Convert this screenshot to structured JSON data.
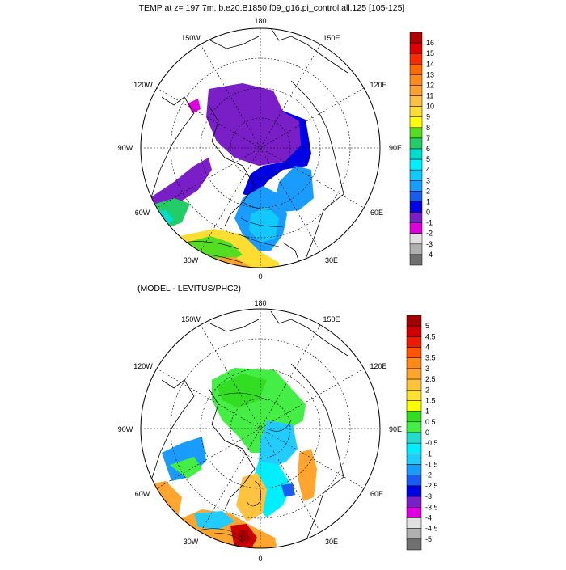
{
  "top_panel": {
    "title": "TEMP at z= 197.7m, b.e20.B1850.f09_g16.pi_control.all.125 [105-125]",
    "lon_labels": {
      "top": "180",
      "tl": "150W",
      "tr": "150E",
      "ul": "120W",
      "ur": "120E",
      "left": "90W",
      "right": "90E",
      "ll": "60W",
      "lr": "60E",
      "bl": "30W",
      "br": "30E",
      "bottom": "0"
    },
    "colorbar": {
      "labels": [
        "16",
        "15",
        "14",
        "13",
        "12",
        "11",
        "10",
        "9",
        "8",
        "7",
        "6",
        "5",
        "4",
        "3",
        "2",
        "1",
        "0",
        "-1",
        "-2",
        "-3",
        "-4"
      ],
      "colors": [
        "#b00000",
        "#dd0000",
        "#ff2a00",
        "#ff6a00",
        "#ff8a1a",
        "#ffa030",
        "#ffbf40",
        "#ffdd33",
        "#ffff00",
        "#55dd22",
        "#22cc66",
        "#00ddcc",
        "#00eeff",
        "#11c8ff",
        "#1a9cff",
        "#1a5cf0",
        "#0000e6",
        "#7a1ec8",
        "#dd00dd",
        "#e0e0e0",
        "#b0b0b0",
        "#707070"
      ]
    }
  },
  "bottom_panel": {
    "title": "(MODEL - LEVITUS/PHC2)",
    "lon_labels": {
      "top": "180",
      "tl": "150W",
      "tr": "150E",
      "ul": "120W",
      "ur": "120E",
      "left": "90W",
      "right": "90E",
      "ll": "60W",
      "lr": "60E",
      "bl": "30W",
      "br": "30E",
      "bottom": "0"
    },
    "colorbar": {
      "labels": [
        "5",
        "4.5",
        "4",
        "3.5",
        "3",
        "2.5",
        "2",
        "1.5",
        "1",
        "0.5",
        "0",
        "-0.5",
        "-1",
        "-1.5",
        "-2",
        "-2.5",
        "-3",
        "-3.5",
        "-4",
        "-4.5",
        "-5"
      ],
      "colors": [
        "#a00000",
        "#cc0000",
        "#ee1a00",
        "#ff5500",
        "#ff8a1a",
        "#ffa530",
        "#ffc340",
        "#ffe033",
        "#ffff00",
        "#33dd22",
        "#44ee44",
        "#22ddcc",
        "#00eeff",
        "#22ccff",
        "#1a9cff",
        "#1a5cf0",
        "#0000e6",
        "#7a1ec8",
        "#dd00dd",
        "#e0e0e0",
        "#b0b0b0",
        "#707070"
      ]
    }
  }
}
